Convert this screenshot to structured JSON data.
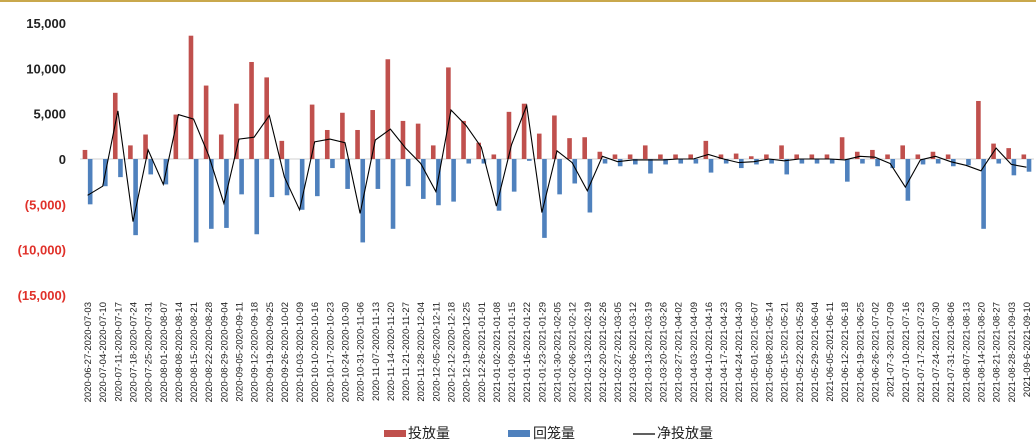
{
  "chart_data": {
    "type": "bar",
    "ylim": [
      -15000,
      15000
    ],
    "yticks": [
      15000,
      10000,
      5000,
      0,
      -5000,
      -10000,
      -15000
    ],
    "ytick_labels": [
      "15,000",
      "10,000",
      "5,000",
      "0",
      "(5,000)",
      "(10,000)",
      "(15,000)"
    ],
    "colors": {
      "positive_tick": "#222222",
      "negative_tick": "#e0312a",
      "series0": "#c0504d",
      "series1": "#4f81bd",
      "line": "#000000",
      "top_rule": "#c9a84c"
    },
    "legend_position": "bottom",
    "categories": [
      "2020-06-27-2020-07-03",
      "2020-07-04-2020-07-10",
      "2020-07-11-2020-07-17",
      "2020-07-18-2020-07-24",
      "2020-07-25-2020-07-31",
      "2020-08-01-2020-08-07",
      "2020-08-08-2020-08-14",
      "2020-08-15-2020-08-21",
      "2020-08-22-2020-08-28",
      "2020-08-29-2020-09-04",
      "2020-09-05-2020-09-11",
      "2020-09-12-2020-09-18",
      "2020-09-19-2020-09-25",
      "2020-09-26-2020-10-02",
      "2020-10-03-2020-10-09",
      "2020-10-10-2020-10-16",
      "2020-10-17-2020-10-23",
      "2020-10-24-2020-10-30",
      "2020-10-31-2020-11-06",
      "2020-11-07-2020-11-13",
      "2020-11-14-2020-11-20",
      "2020-11-21-2020-11-27",
      "2020-11-28-2020-12-04",
      "2020-12-05-2020-12-11",
      "2020-12-12-2020-12-18",
      "2020-12-19-2020-12-25",
      "2020-12-26-2021-01-01",
      "2021-01-02-2021-01-08",
      "2021-01-09-2021-01-15",
      "2021-01-16-2021-01-22",
      "2021-01-23-2021-01-29",
      "2021-01-30-2021-02-05",
      "2021-02-06-2021-02-12",
      "2021-02-13-2021-02-19",
      "2021-02-20-2021-02-26",
      "2021-02-27-2021-03-05",
      "2021-03-06-2021-03-12",
      "2021-03-13-2021-03-19",
      "2021-03-20-2021-03-26",
      "2021-03-27-2021-04-02",
      "2021-04-03-2021-04-09",
      "2021-04-10-2021-04-16",
      "2021-04-17-2021-04-23",
      "2021-04-24-2021-04-30",
      "2021-05-01-2021-05-07",
      "2021-05-08-2021-05-14",
      "2021-05-15-2021-05-21",
      "2021-05-22-2021-05-28",
      "2021-05-29-2021-06-04",
      "2021-06-05-2021-06-11",
      "2021-06-12-2021-06-18",
      "2021-06-19-2021-06-25",
      "2021-06-26-2021-07-02",
      "2021-07-3-2021-07-09",
      "2021-07-10-2021-07-16",
      "2021-07-17-2021-07-23",
      "2021-07-24-2021-07-30",
      "2021-07-31-2021-08-06",
      "2021-08-07-2021-08-13",
      "2021-08-14-2021-08-20",
      "2021-08-21-2021-08-27",
      "2021-08-28-2021-09-03",
      "2021-09-6-2021-09-10"
    ],
    "series": [
      {
        "name": "投放量",
        "values": [
          1000,
          0,
          7300,
          1500,
          2700,
          0,
          4900,
          13600,
          8100,
          2700,
          6100,
          10700,
          9000,
          2000,
          0,
          6000,
          3200,
          5100,
          3200,
          5400,
          11000,
          4200,
          3900,
          1500,
          10100,
          4200,
          1800,
          500,
          5200,
          6100,
          2800,
          4800,
          2300,
          2400,
          800,
          500,
          500,
          1500,
          500,
          500,
          500,
          2000,
          500,
          600,
          300,
          500,
          1500,
          500,
          500,
          500,
          2400,
          800,
          1000,
          500,
          1500,
          500,
          800,
          500,
          0,
          6400,
          1700,
          1200,
          500
        ]
      },
      {
        "name": "回笼量",
        "values": [
          -5000,
          -3000,
          -2000,
          -8400,
          -1700,
          -2800,
          0,
          -9200,
          -7700,
          -7600,
          -3900,
          -8300,
          -4200,
          -4000,
          -5600,
          -4100,
          -1000,
          -3300,
          -9200,
          -3300,
          -7700,
          -3000,
          -4400,
          -5100,
          -4700,
          -500,
          -500,
          -5700,
          -3600,
          -200,
          -8700,
          -3900,
          -2700,
          -5900,
          -500,
          -800,
          -600,
          -1600,
          -600,
          -500,
          -500,
          -1500,
          -500,
          -1000,
          -600,
          -500,
          -1700,
          -500,
          -500,
          -500,
          -2500,
          -500,
          -800,
          -1000,
          -4600,
          -600,
          -500,
          -800,
          -700,
          -7700,
          -500,
          -1800,
          -1400
        ]
      },
      {
        "name": "净投放量",
        "values": [
          -4000,
          -3000,
          5300,
          -6900,
          1000,
          -2800,
          4900,
          4400,
          400,
          -4900,
          2200,
          2400,
          4800,
          -2000,
          -5600,
          1900,
          2200,
          1800,
          -6000,
          2100,
          3300,
          1200,
          -500,
          -3600,
          5400,
          3700,
          1300,
          -5200,
          1600,
          5900,
          -5900,
          900,
          -400,
          -3500,
          300,
          -300,
          -100,
          -100,
          -100,
          0,
          0,
          500,
          0,
          -400,
          -300,
          0,
          -200,
          0,
          0,
          0,
          -100,
          300,
          200,
          -500,
          -3100,
          -100,
          300,
          -300,
          -700,
          -1300,
          1200,
          -600,
          -900
        ]
      }
    ]
  }
}
